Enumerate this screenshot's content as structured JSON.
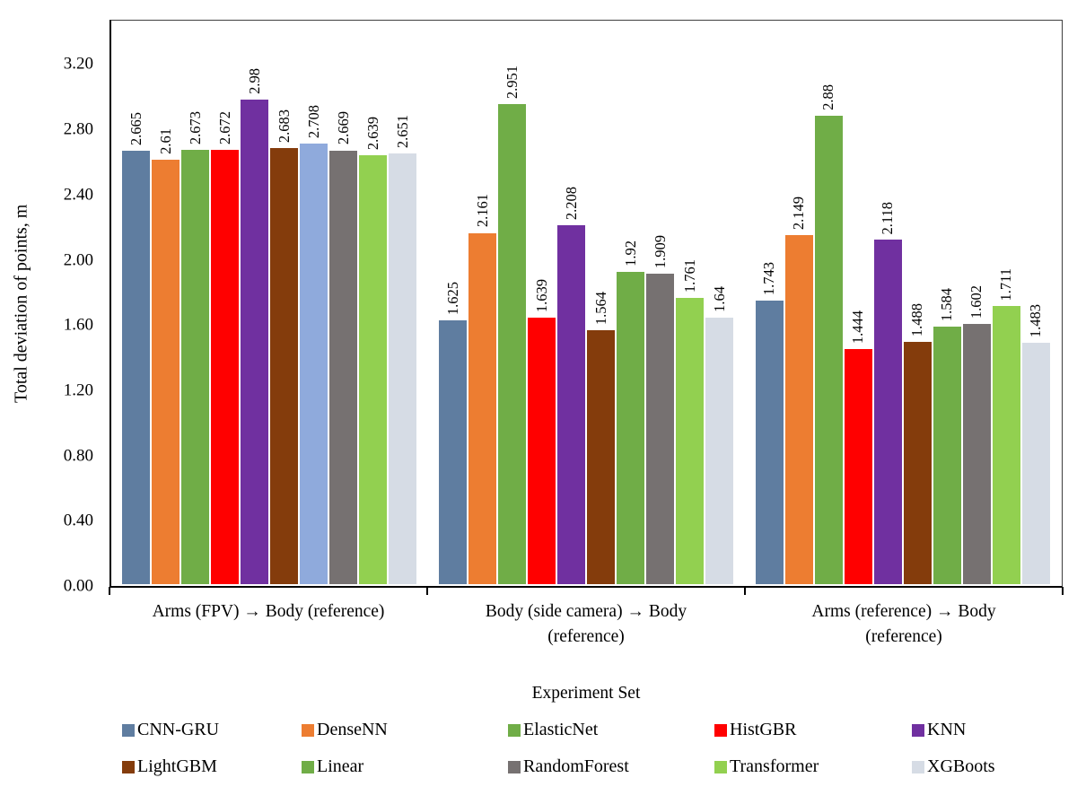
{
  "chart_data": {
    "type": "bar",
    "title": "",
    "xlabel": "Experiment Set",
    "ylabel": "Total deviation of points, m",
    "ylim": [
      0,
      3.4667
    ],
    "yticks": [
      "0.00",
      "0.40",
      "0.80",
      "1.20",
      "1.60",
      "2.00",
      "2.40",
      "2.80",
      "3.20"
    ],
    "grid": false,
    "legend_position": "bottom",
    "categories": [
      "Arms (FPV) → Body (reference)",
      "Body (side camera) → Body\n(reference)",
      "Arms (reference) → Body\n(reference)"
    ],
    "series": [
      {
        "name": "CNN-GRU",
        "color": "#5F7DA0",
        "values": [
          2.665,
          1.625,
          1.743
        ]
      },
      {
        "name": "DenseNN",
        "color": "#ED7D31",
        "values": [
          2.61,
          2.161,
          2.149
        ]
      },
      {
        "name": "ElasticNet",
        "color": "#70AD47",
        "values": [
          2.673,
          2.951,
          2.88
        ]
      },
      {
        "name": "HistGBR",
        "color": "#FF0000",
        "values": [
          2.672,
          1.639,
          1.444
        ]
      },
      {
        "name": "KNN",
        "color": "#7030A0",
        "values": [
          2.98,
          2.208,
          2.118
        ]
      },
      {
        "name": "LightGBM",
        "color": "#843C0C",
        "values": [
          2.683,
          1.564,
          1.488
        ]
      },
      {
        "name": "Linear",
        "color": "#70AD47",
        "values": [
          2.708,
          1.92,
          1.584
        ],
        "color_overrides": {
          "0": "#8FAADC"
        }
      },
      {
        "name": "RandomForest",
        "color": "#767171",
        "values": [
          2.669,
          1.909,
          1.602
        ]
      },
      {
        "name": "Transformer",
        "color": "#92D050",
        "values": [
          2.639,
          1.761,
          1.711
        ]
      },
      {
        "name": "XGBoots",
        "color": "#D6DCE5",
        "values": [
          2.651,
          1.64,
          1.483
        ]
      }
    ]
  }
}
